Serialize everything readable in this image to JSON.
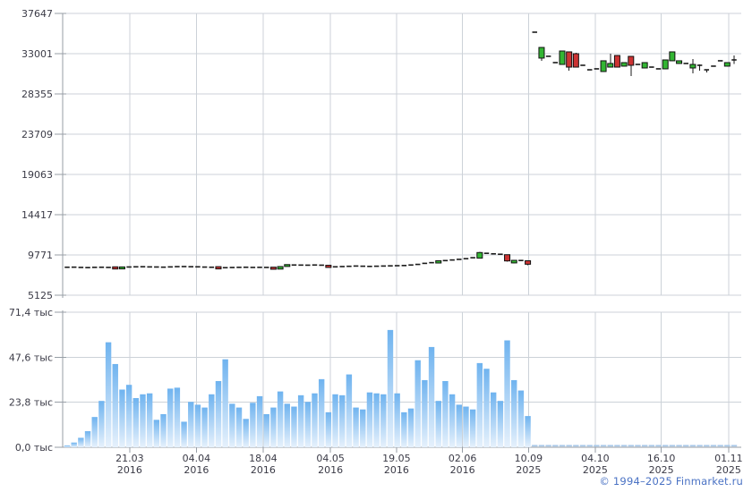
{
  "footer": {
    "copyright": "© 1994–2025 Finmarket.ru"
  },
  "chart_data": {
    "type": "candlestick+volume",
    "title": "",
    "grid": true,
    "legend": "none",
    "price_axis": {
      "max": 37647,
      "min": 5125,
      "ticks": [
        37647,
        33001,
        28355,
        23709,
        19063,
        14417,
        9771,
        5125
      ]
    },
    "volume_axis": {
      "max": 71.4,
      "unit": "тыс",
      "ticks": [
        {
          "v": 71.4,
          "label": "71,4 тыс"
        },
        {
          "v": 47.6,
          "label": "47,6 тыс"
        },
        {
          "v": 23.8,
          "label": "23,8 тыс"
        },
        {
          "v": 0.0,
          "label": "0,0 тыс"
        }
      ]
    },
    "x_ticks": [
      {
        "label": "21.03",
        "year": "2016",
        "index": 9.1
      },
      {
        "label": "04.04",
        "year": "2016",
        "index": 18.8
      },
      {
        "label": "18.04",
        "year": "2016",
        "index": 28.5
      },
      {
        "label": "04.05",
        "year": "2016",
        "index": 38.3
      },
      {
        "label": "19.05",
        "year": "2016",
        "index": 47.9
      },
      {
        "label": "02.06",
        "year": "2016",
        "index": 57.5
      },
      {
        "label": "10.09",
        "year": "2025",
        "index": 67.1
      },
      {
        "label": "04.10",
        "year": "2025",
        "index": 76.8
      },
      {
        "label": "16.10",
        "year": "2025",
        "index": 86.4
      },
      {
        "label": "01.11",
        "year": "2025",
        "index": 96.2
      }
    ],
    "colors": {
      "candle_up": "#33b533",
      "candle_down": "#cc3333",
      "candle_stroke": "#111111",
      "doji": "#1a1a1a",
      "volume_top": "#6fb3ef",
      "volume_bottom": "#e6f1fc",
      "volume_dash": "#a9c9e9",
      "grid": "#ccd2d8",
      "axis": "#979ea6",
      "text": "#3a3a46",
      "link": "#4a72c4"
    },
    "candles_ohlc": [
      [
        8350,
        8420,
        8300,
        8350
      ],
      [
        8370,
        8450,
        8320,
        8360
      ],
      [
        8340,
        8400,
        8260,
        8330
      ],
      [
        8320,
        8380,
        8260,
        8310
      ],
      [
        8330,
        8420,
        8280,
        8340
      ],
      [
        8360,
        8440,
        8300,
        8350
      ],
      [
        8340,
        8400,
        8280,
        8330
      ],
      [
        8400,
        8430,
        8120,
        8150
      ],
      [
        8160,
        8420,
        8140,
        8390
      ],
      [
        8380,
        8440,
        8330,
        8380
      ],
      [
        8400,
        8460,
        8350,
        8400
      ],
      [
        8420,
        8480,
        8360,
        8410
      ],
      [
        8400,
        8450,
        8340,
        8390
      ],
      [
        8380,
        8440,
        8330,
        8380
      ],
      [
        8360,
        8420,
        8300,
        8360
      ],
      [
        8390,
        8450,
        8330,
        8390
      ],
      [
        8410,
        8470,
        8360,
        8420
      ],
      [
        8440,
        8500,
        8380,
        8430
      ],
      [
        8420,
        8470,
        8360,
        8410
      ],
      [
        8400,
        8450,
        8350,
        8400
      ],
      [
        8380,
        8430,
        8320,
        8370
      ],
      [
        8350,
        8400,
        8300,
        8350
      ],
      [
        8420,
        8440,
        8130,
        8160
      ],
      [
        8180,
        8350,
        8160,
        8300
      ],
      [
        8310,
        8380,
        8260,
        8320
      ],
      [
        8330,
        8400,
        8280,
        8340
      ],
      [
        8350,
        8410,
        8300,
        8350
      ],
      [
        8330,
        8390,
        8280,
        8330
      ],
      [
        8350,
        8400,
        8290,
        8340
      ],
      [
        8330,
        8390,
        8280,
        8330
      ],
      [
        8360,
        8390,
        8080,
        8120
      ],
      [
        8140,
        8460,
        8120,
        8430
      ],
      [
        8440,
        8690,
        8420,
        8660
      ],
      [
        8600,
        8660,
        8550,
        8610
      ],
      [
        8590,
        8650,
        8540,
        8600
      ],
      [
        8580,
        8640,
        8530,
        8590
      ],
      [
        8600,
        8660,
        8550,
        8610
      ],
      [
        8590,
        8650,
        8540,
        8590
      ],
      [
        8580,
        8600,
        8300,
        8330
      ],
      [
        8350,
        8450,
        8320,
        8400
      ],
      [
        8420,
        8480,
        8370,
        8430
      ],
      [
        8450,
        8510,
        8400,
        8460
      ],
      [
        8480,
        8540,
        8430,
        8490
      ],
      [
        8470,
        8520,
        8410,
        8470
      ],
      [
        8450,
        8500,
        8400,
        8450
      ],
      [
        8460,
        8520,
        8410,
        8470
      ],
      [
        8480,
        8540,
        8430,
        8490
      ],
      [
        8500,
        8560,
        8450,
        8510
      ],
      [
        8520,
        8580,
        8470,
        8530
      ],
      [
        8540,
        8600,
        8490,
        8550
      ],
      [
        8570,
        8650,
        8520,
        8610
      ],
      [
        8600,
        8710,
        8570,
        8680
      ],
      [
        8690,
        8840,
        8660,
        8800
      ],
      [
        8810,
        8910,
        8780,
        8880
      ],
      [
        8840,
        9120,
        8810,
        9100
      ],
      [
        9060,
        9160,
        9030,
        9120
      ],
      [
        9130,
        9230,
        9100,
        9190
      ],
      [
        9200,
        9300,
        9170,
        9260
      ],
      [
        9280,
        9380,
        9250,
        9340
      ],
      [
        9350,
        9500,
        9320,
        9450
      ],
      [
        9400,
        10150,
        9350,
        10050
      ],
      [
        10000,
        10080,
        9880,
        9960
      ],
      [
        9950,
        10010,
        9830,
        9900
      ],
      [
        9880,
        9940,
        9760,
        9850
      ],
      [
        9800,
        9840,
        9000,
        9080
      ],
      [
        8850,
        9200,
        8800,
        9150
      ],
      [
        9160,
        9220,
        9060,
        9130
      ],
      [
        9100,
        9140,
        8600,
        8700
      ],
      [
        35480,
        35560,
        35400,
        35480
      ],
      [
        32490,
        33780,
        32180,
        33720
      ],
      [
        32700,
        32780,
        32620,
        32700
      ],
      [
        31970,
        32050,
        31890,
        31970
      ],
      [
        31760,
        33380,
        31700,
        33310
      ],
      [
        33210,
        33280,
        31040,
        31450
      ],
      [
        33000,
        33080,
        31380,
        31450
      ],
      [
        31660,
        31740,
        31580,
        31660
      ],
      [
        31140,
        31220,
        31060,
        31140
      ],
      [
        31250,
        31330,
        31170,
        31250
      ],
      [
        30940,
        32250,
        30880,
        32180
      ],
      [
        31450,
        33000,
        31390,
        31870
      ],
      [
        32790,
        32860,
        31380,
        31450
      ],
      [
        31560,
        32040,
        31500,
        31970
      ],
      [
        32690,
        32760,
        30420,
        31660
      ],
      [
        31760,
        31840,
        31680,
        31760
      ],
      [
        31350,
        32040,
        31290,
        31970
      ],
      [
        31450,
        31530,
        31370,
        31450
      ],
      [
        31250,
        31330,
        31170,
        31250
      ],
      [
        31250,
        32350,
        31190,
        32280
      ],
      [
        32180,
        33280,
        32120,
        33210
      ],
      [
        31870,
        32250,
        31810,
        32180
      ],
      [
        31870,
        31950,
        31790,
        31870
      ],
      [
        31350,
        32380,
        30730,
        31760
      ],
      [
        31660,
        31740,
        31040,
        31660
      ],
      [
        31140,
        31220,
        30830,
        31140
      ],
      [
        31560,
        31640,
        31480,
        31560
      ],
      [
        32180,
        32260,
        32100,
        32180
      ],
      [
        31560,
        32040,
        31500,
        31970
      ],
      [
        32280,
        32800,
        31800,
        32280
      ]
    ],
    "volumes_thousands": [
      1.0,
      2.5,
      5.0,
      8.5,
      16.0,
      24.5,
      55.5,
      44.0,
      30.5,
      33.0,
      26.0,
      28.0,
      28.5,
      14.5,
      17.5,
      31.0,
      31.5,
      13.5,
      24.0,
      22.5,
      21.0,
      28.0,
      35.0,
      46.5,
      23.0,
      21.0,
      15.0,
      23.5,
      27.0,
      17.5,
      21.0,
      29.5,
      23.0,
      21.5,
      27.5,
      24.0,
      28.5,
      36.0,
      18.5,
      28.0,
      27.5,
      38.5,
      21.0,
      20.0,
      29.0,
      28.5,
      28.0,
      62.0,
      28.5,
      18.5,
      20.5,
      46.0,
      35.5,
      53.0,
      24.5,
      35.0,
      28.0,
      22.5,
      21.5,
      20.0,
      44.5,
      41.5,
      29.0,
      24.5,
      56.5,
      35.5,
      30.0,
      16.5,
      0.4,
      0.4,
      0.4,
      0.4,
      0.4,
      0.4,
      0.4,
      0.4,
      0.4,
      0.4,
      0.4,
      0.4,
      0.4,
      0.4,
      0.4,
      0.4,
      0.4,
      0.4,
      0.4,
      0.4,
      0.4,
      0.4,
      0.4,
      0.4,
      0.4,
      0.4,
      0.4,
      0.4,
      0.4,
      0.4
    ]
  }
}
